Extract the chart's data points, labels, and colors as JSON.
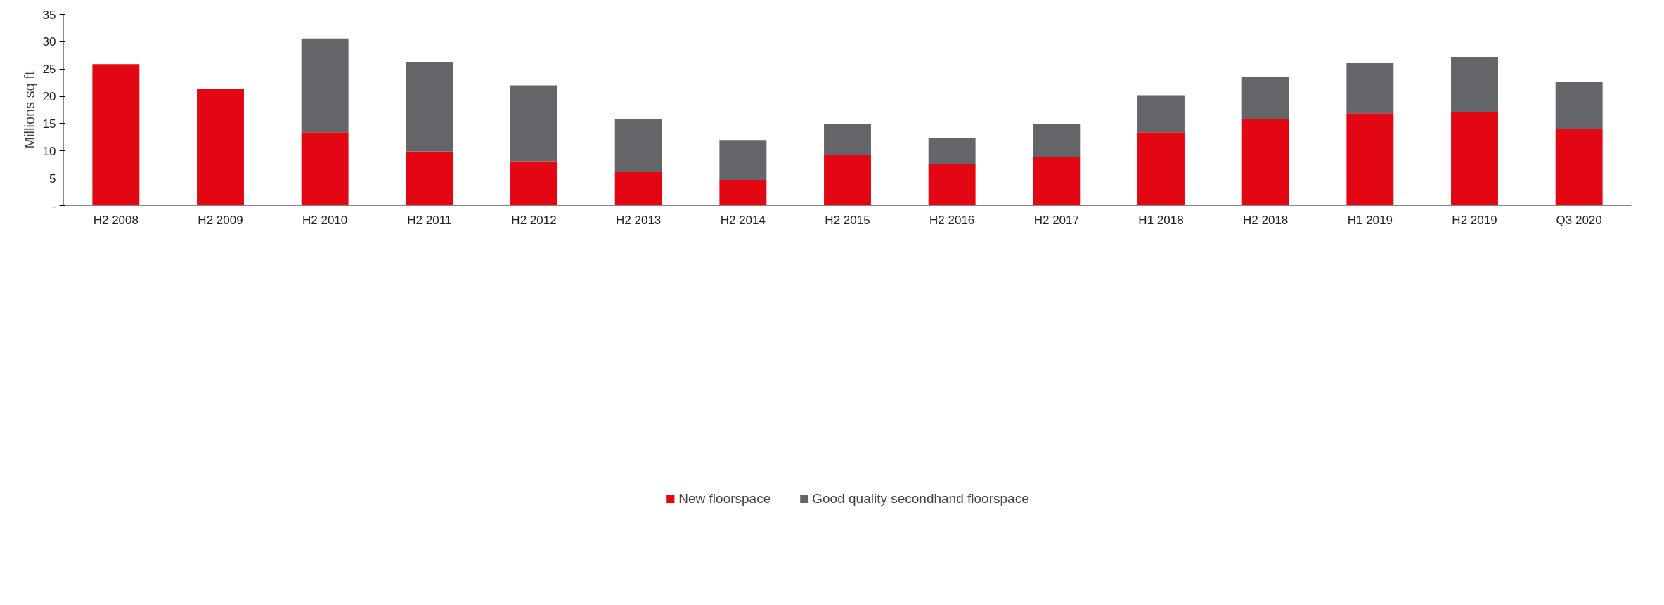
{
  "chart_data": {
    "type": "bar",
    "stacked": true,
    "ylabel": "Millions sq ft",
    "categories": [
      "H2 2008",
      "H2 2009",
      "H2 2010",
      "H2 2011",
      "H2 2012",
      "H2 2013",
      "H2 2014",
      "H2 2015",
      "H2 2016",
      "H2 2017",
      "H1 2018",
      "H2 2018",
      "H1 2019",
      "H2 2019",
      "Q3 2020"
    ],
    "series": [
      {
        "name": "New floorspace",
        "color": "#e30613",
        "values": [
          25.9,
          21.4,
          13.4,
          9.9,
          8.1,
          6.1,
          4.7,
          9.2,
          7.6,
          8.8,
          13.4,
          15.9,
          16.9,
          17.1,
          14.0
        ]
      },
      {
        "name": "Good quality secondhand floorspace",
        "color": "#636569",
        "values": [
          null,
          null,
          17.2,
          16.4,
          13.9,
          9.7,
          7.3,
          5.8,
          4.7,
          6.2,
          6.8,
          7.7,
          9.2,
          10.1,
          8.7
        ]
      }
    ],
    "ylim": [
      0,
      35
    ],
    "yticks": [
      {
        "value": 0,
        "label": "-"
      },
      5,
      10,
      15,
      20,
      25,
      30,
      35
    ],
    "grid": false,
    "legend": "bottom"
  }
}
